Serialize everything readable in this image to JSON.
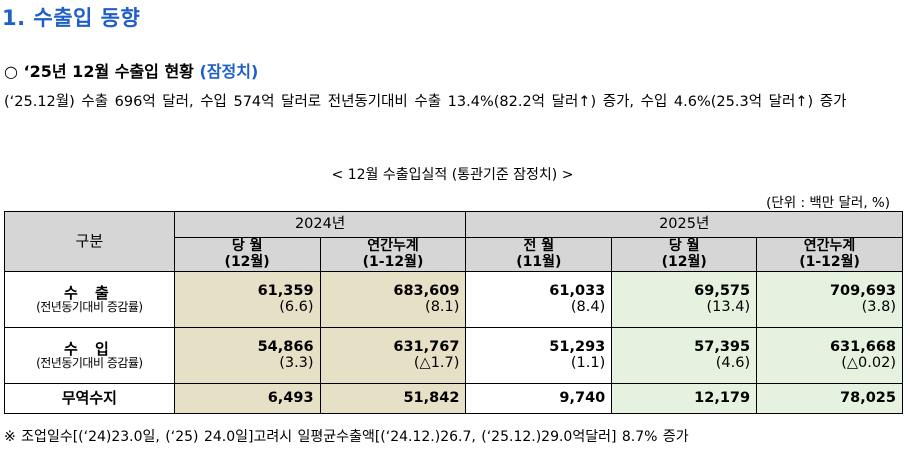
{
  "heading": "1. 수출입 동향",
  "subheading": {
    "bullet": "○",
    "main": "‘25년 12월 수출입 현황",
    "prelim": "(잠정치)"
  },
  "summary": "(‘25.12월) 수출 696억 달러, 수입 574억 달러로 전년동기대비 수출 13.4%(82.2억 달러↑) 증가, 수입 4.6%(25.3억 달러↑) 증가",
  "table_caption": "< 12월 수출입실적 (통관기준 잠정치) >",
  "unit": "(단위 : 백만 달러, %)",
  "table": {
    "category_header": "구분",
    "group_2024": "2024년",
    "group_2025": "2025년",
    "cols": [
      {
        "l1": "당 월",
        "l2": "(12월)"
      },
      {
        "l1": "연간누계",
        "l2": "(1-12월)"
      },
      {
        "l1": "전 월",
        "l2": "(11월)"
      },
      {
        "l1": "당 월",
        "l2": "(12월)"
      },
      {
        "l1": "연간누계",
        "l2": "(1-12월)"
      }
    ],
    "export": {
      "label": "수 출",
      "note": "(전년동기대비 증감률)",
      "values": [
        "61,359",
        "683,609",
        "61,033",
        "69,575",
        "709,693"
      ],
      "rates": [
        "(6.6)",
        "(8.1)",
        "(8.4)",
        "(13.4)",
        "(3.8)"
      ]
    },
    "import": {
      "label": "수 입",
      "note": "(전년동기대비 증감률)",
      "values": [
        "54,866",
        "631,767",
        "51,293",
        "57,395",
        "631,668"
      ],
      "rates": [
        "(3.3)",
        "(△1.7)",
        "(1.1)",
        "(4.6)",
        "(△0.02)"
      ]
    },
    "balance": {
      "label": "무역수지",
      "values": [
        "6,493",
        "51,842",
        "9,740",
        "12,179",
        "78,025"
      ]
    }
  },
  "footnote": "※ 조업일수[(‘24)23.0일, (‘25) 24.0일]고려시 일평균수출액[(‘24.12.)26.7, (‘25.12.)29.0억달러] 8.7% 증가",
  "colors": {
    "heading": "#1f5fc9",
    "header_bg": "#d6d6d6",
    "col_2024_bg": "#e6e0c6",
    "col_2025_bg": "#e4f2df"
  }
}
